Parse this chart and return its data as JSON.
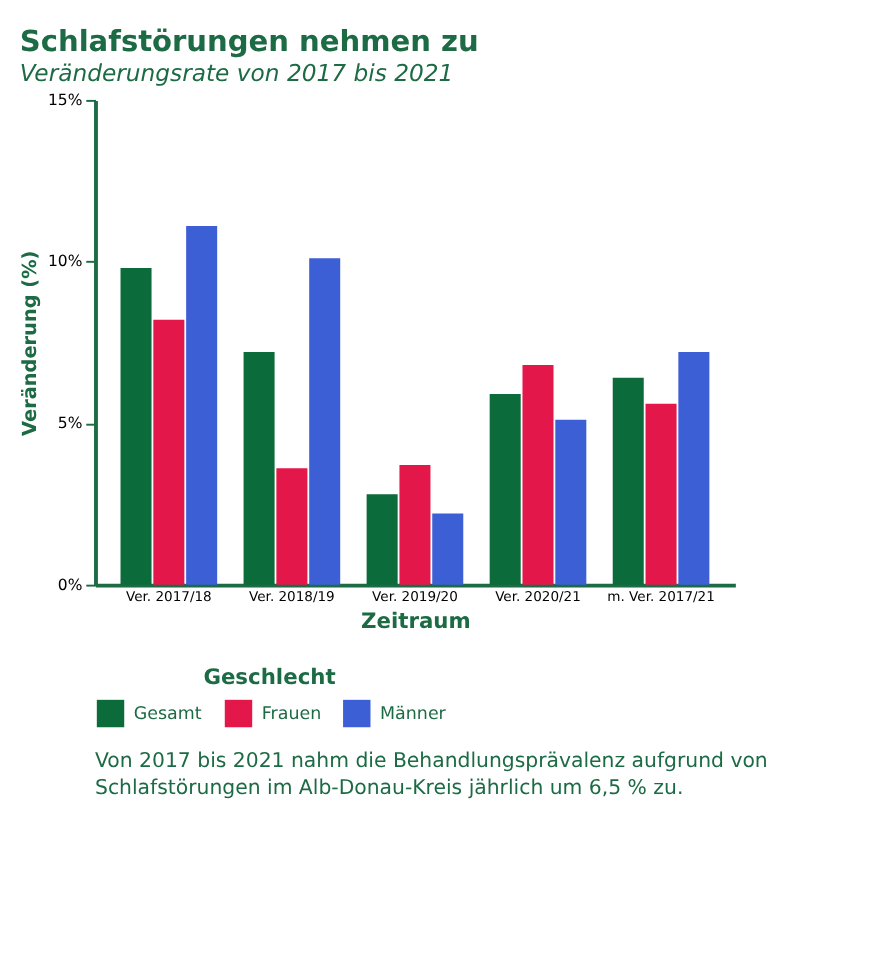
{
  "chart_data": {
    "type": "bar",
    "title": "Schlafstörungen nehmen zu",
    "subtitle": "Veränderungsrate von 2017 bis 2021",
    "xlabel": "Zeitraum",
    "ylabel": "Veränderung (%)",
    "legend_title": "Geschlecht",
    "categories": [
      "Ver. 2017/18",
      "Ver. 2018/19",
      "Ver. 2019/20",
      "Ver. 2020/21",
      "m. Ver. 2017/21"
    ],
    "series": [
      {
        "name": "Gesamt",
        "color": "#0b6b3a",
        "values": [
          9.8,
          7.2,
          2.8,
          5.9,
          6.4
        ]
      },
      {
        "name": "Frauen",
        "color": "#e3174a",
        "values": [
          8.2,
          3.6,
          3.7,
          6.8,
          5.6
        ]
      },
      {
        "name": "Männer",
        "color": "#3d5fd6",
        "values": [
          11.1,
          10.1,
          2.2,
          5.1,
          7.2
        ]
      }
    ],
    "ylim": [
      0,
      15
    ],
    "yticks": [
      {
        "value": 0,
        "label": "0%"
      },
      {
        "value": 5,
        "label": "5%"
      },
      {
        "value": 10,
        "label": "10%"
      },
      {
        "value": 15,
        "label": "15%"
      }
    ],
    "grid": false,
    "legend": "bottom",
    "annotations": [
      "Von 2017 bis 2021 nahm die Behandlungsprävalenz aufgrund von Schlafstörungen im Alb-Donau-Kreis jährlich um 6,5 % zu."
    ]
  }
}
